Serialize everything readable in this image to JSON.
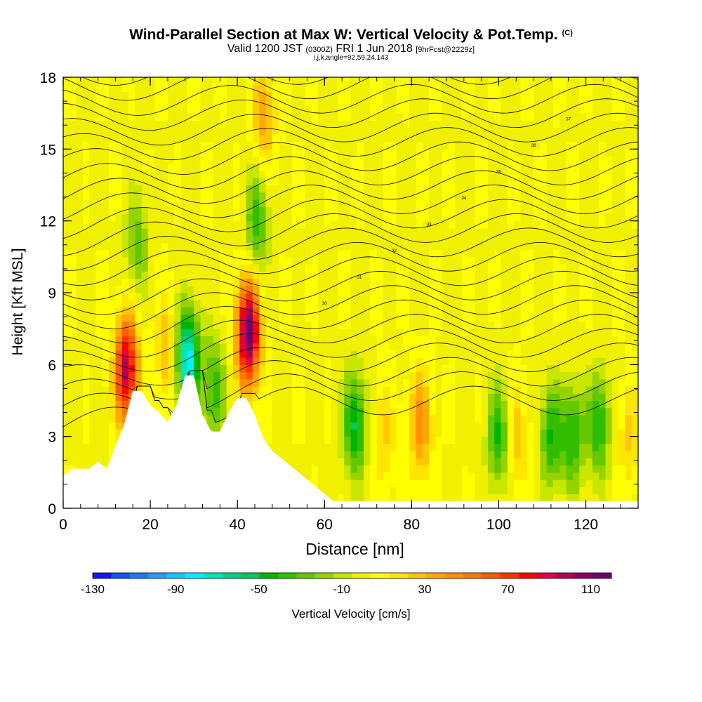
{
  "header": {
    "title": "Wind-Parallel Section at Max W: Vertical Velocity & Pot.Temp.",
    "copyright": "(C)",
    "valid_prefix": "Valid 1200 JST",
    "valid_utc": "(0300Z)",
    "valid_date": "FRI 1 Jun 2018",
    "forecast": "[9hrFcst@2229z]",
    "indices": "i,j,k,angle=92,59,24,143"
  },
  "chart_data": {
    "type": "heatmap",
    "xlabel": "Distance [nm]",
    "ylabel": "Height [Kft MSL]",
    "xlim": [
      0,
      132
    ],
    "ylim": [
      0,
      18
    ],
    "x_ticks": [
      0,
      20,
      40,
      60,
      80,
      100,
      120
    ],
    "y_ticks": [
      0,
      3,
      6,
      9,
      12,
      15,
      18
    ],
    "grid": false,
    "colorbar": {
      "label": "Vertical Velocity [cm/s]",
      "range": [
        -130,
        120
      ],
      "tick_labels": [
        "-130",
        "-90",
        "-50",
        "-10",
        "30",
        "70",
        "110"
      ],
      "colors": [
        "#1414ff",
        "#1e50ff",
        "#1e78ff",
        "#1ea0ff",
        "#14c8ff",
        "#00f0ff",
        "#00e6b4",
        "#00d282",
        "#00c85a",
        "#00b400",
        "#32be00",
        "#64c800",
        "#96d200",
        "#c8e600",
        "#f0f000",
        "#ffff00",
        "#ffe600",
        "#ffc800",
        "#ffaa00",
        "#ff9100",
        "#ff7800",
        "#ff5a00",
        "#ff3200",
        "#ff0000",
        "#e6003c",
        "#b40050",
        "#8c0064",
        "#6e006e"
      ]
    },
    "velocity_features": [
      {
        "x": 14.5,
        "y": 5.8,
        "w": 95
      },
      {
        "x": 42.5,
        "y": 7.3,
        "w": 115
      },
      {
        "x": 28.5,
        "y": 6.2,
        "w": -90
      },
      {
        "x": 17,
        "y": 11,
        "w": -30
      },
      {
        "x": 44.5,
        "y": 12,
        "w": -40
      },
      {
        "x": 34.5,
        "y": 5,
        "w": -40
      },
      {
        "x": 67,
        "y": 3.5,
        "w": -55
      },
      {
        "x": 100,
        "y": 3,
        "w": -45
      },
      {
        "x": 112,
        "y": 3,
        "w": -45
      },
      {
        "x": 117,
        "y": 3,
        "w": -45
      },
      {
        "x": 123,
        "y": 3.5,
        "w": -45
      },
      {
        "x": 82,
        "y": 3.5,
        "w": 40
      },
      {
        "x": 73.5,
        "y": 3,
        "w": 20
      },
      {
        "x": 104,
        "y": 3,
        "w": 25
      },
      {
        "x": 130,
        "y": 3,
        "w": 20
      },
      {
        "x": 24,
        "y": 6.5,
        "w": 30
      },
      {
        "x": 46,
        "y": 16.5,
        "w": 35
      }
    ],
    "terrain": [
      [
        0,
        1.35
      ],
      [
        2,
        1.65
      ],
      [
        4,
        1.65
      ],
      [
        6,
        1.65
      ],
      [
        8,
        1.95
      ],
      [
        10,
        1.65
      ],
      [
        12,
        2.6
      ],
      [
        14,
        3.5
      ],
      [
        16,
        4.9
      ],
      [
        18,
        4.9
      ],
      [
        20,
        4.3
      ],
      [
        22,
        4.0
      ],
      [
        24,
        3.6
      ],
      [
        26,
        4.3
      ],
      [
        28,
        5.55
      ],
      [
        30,
        5.55
      ],
      [
        32,
        3.9
      ],
      [
        34,
        3.2
      ],
      [
        36,
        3.2
      ],
      [
        38,
        4.0
      ],
      [
        40,
        4.6
      ],
      [
        42,
        4.6
      ],
      [
        44,
        3.9
      ],
      [
        46,
        2.9
      ],
      [
        48,
        2.4
      ],
      [
        50,
        2.1
      ],
      [
        52,
        1.8
      ],
      [
        54,
        1.5
      ],
      [
        56,
        1.2
      ],
      [
        58,
        0.9
      ],
      [
        60,
        0.6
      ],
      [
        62,
        0.3
      ],
      [
        64,
        0.3
      ],
      [
        132,
        0.3
      ]
    ],
    "isentropes": {
      "labels": [
        "30",
        "31",
        "32",
        "33",
        "34",
        "35",
        "36",
        "37"
      ]
    }
  },
  "legend": {
    "label": "Vertical Velocity [cm/s]"
  }
}
